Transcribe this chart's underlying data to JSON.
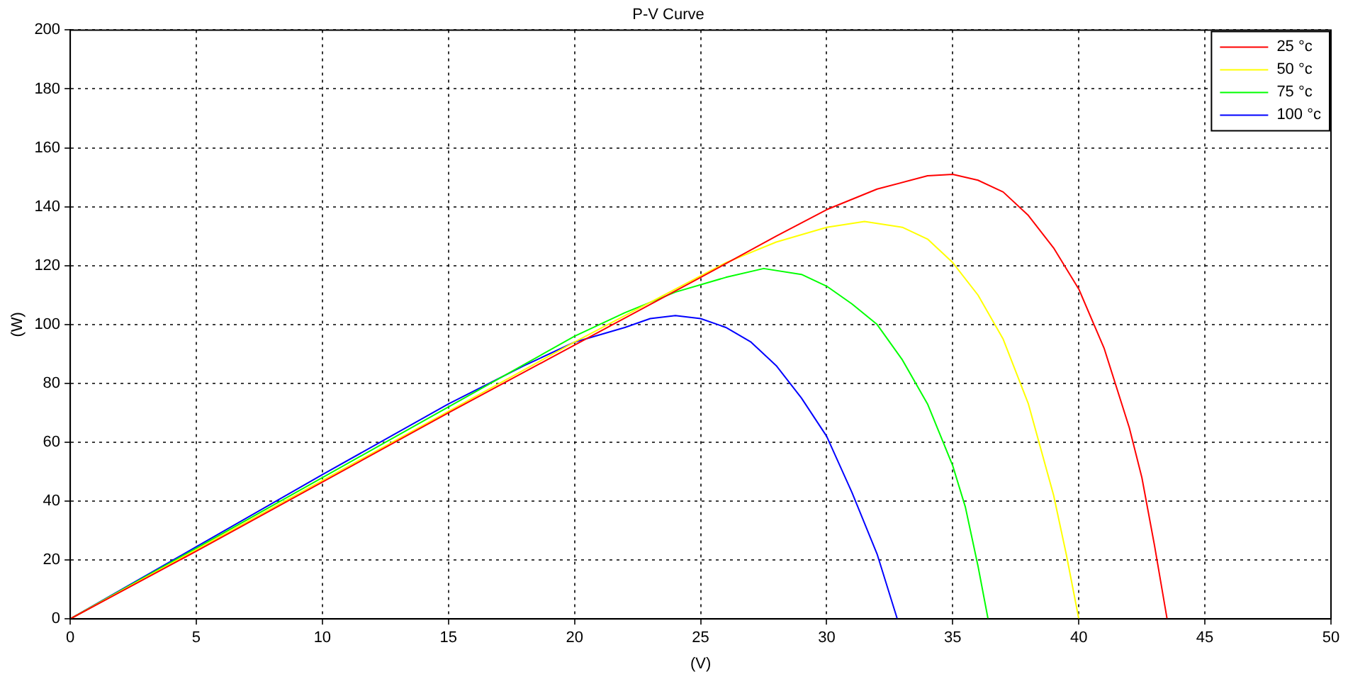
{
  "chart_data": {
    "type": "line",
    "title": "P-V Curve",
    "xlabel": "(V)",
    "ylabel": "(W)",
    "xlim": [
      0,
      50
    ],
    "xticks": [
      0,
      5,
      10,
      15,
      20,
      25,
      30,
      35,
      40,
      45,
      50
    ],
    "ylim": [
      0,
      200
    ],
    "yticks": [
      0,
      20,
      40,
      60,
      80,
      100,
      120,
      140,
      160,
      180,
      200
    ],
    "grid": true,
    "legend": "top right",
    "marker": "none",
    "line_style": "solid",
    "series": [
      {
        "name": "25 °c",
        "color": "#ff0000",
        "x": [
          0,
          5,
          10,
          15,
          20,
          25,
          28,
          30,
          32,
          34,
          35,
          36,
          37,
          38,
          39,
          40,
          41,
          42,
          42.5,
          43,
          43.5
        ],
        "values": [
          0,
          23,
          46.5,
          70,
          93,
          116,
          130,
          139,
          146,
          150.5,
          151,
          149,
          145,
          137,
          126,
          112,
          92,
          65,
          48,
          25,
          0
        ]
      },
      {
        "name": "50 °c",
        "color": "#ffff00",
        "x": [
          0,
          5,
          10,
          15,
          20,
          24,
          26,
          28,
          30,
          31.5,
          33,
          34,
          35,
          36,
          37,
          38,
          39,
          39.5,
          40
        ],
        "values": [
          0,
          23.5,
          47,
          70.5,
          94,
          112,
          121,
          128,
          133,
          135,
          133,
          129,
          121,
          110,
          95,
          73,
          42,
          22,
          0
        ]
      },
      {
        "name": "75 °c",
        "color": "#00ff00",
        "x": [
          0,
          5,
          10,
          15,
          20,
          22,
          24,
          26,
          27.5,
          29,
          30,
          31,
          32,
          33,
          34,
          35,
          35.5,
          36,
          36.4
        ],
        "values": [
          0,
          24,
          48,
          72,
          96,
          104,
          111,
          116,
          119,
          117,
          113,
          107,
          100,
          88,
          73,
          52,
          38,
          18,
          0
        ]
      },
      {
        "name": "100 °c",
        "color": "#0000ff",
        "x": [
          0,
          5,
          10,
          15,
          18,
          20,
          22,
          23,
          24,
          25,
          26,
          27,
          28,
          29,
          30,
          31,
          32,
          32.8
        ],
        "values": [
          0,
          24.5,
          49,
          73,
          86,
          94,
          99,
          102,
          103,
          102,
          99,
          94,
          86,
          75,
          62,
          43,
          22,
          0
        ]
      }
    ]
  }
}
